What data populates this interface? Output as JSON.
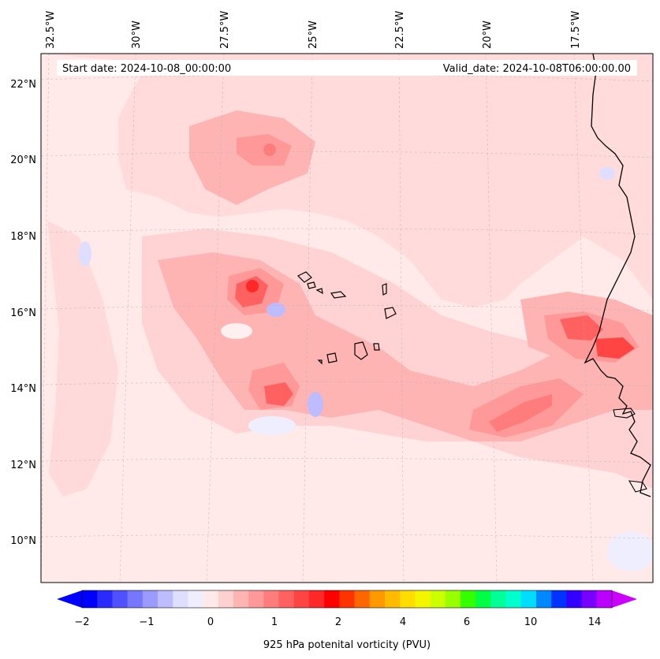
{
  "map": {
    "header": {
      "start_date": "Start date: 2024-10-08_00:00:00",
      "valid_date": "Valid_date: 2024-10-08T06:00:00.00"
    },
    "lon_labels": [
      "32.5°W",
      "30°W",
      "27.5°W",
      "25°W",
      "22.5°W",
      "20°W",
      "17.5°W"
    ],
    "lat_labels": [
      "22°N",
      "20°N",
      "18°N",
      "16°N",
      "14°N",
      "12°N",
      "10°N"
    ],
    "gridlines": true,
    "background_color": "#ffe9e9",
    "colorbar": {
      "label": "925 hPa potenital vorticity (PVU)",
      "tick_labels": [
        "−2",
        "−1",
        "0",
        "1",
        "2",
        "4",
        "6",
        "10",
        "14"
      ],
      "colors": [
        "#0000ff",
        "#2a2aff",
        "#5050ff",
        "#7676ff",
        "#9a9aff",
        "#bcbcff",
        "#dedeff",
        "#eeeeff",
        "#ffe9e9",
        "#ffd0d0",
        "#ffb4b4",
        "#ff9898",
        "#ff7c7c",
        "#ff6060",
        "#ff4444",
        "#ff2828",
        "#ff0000",
        "#ff3300",
        "#ff6600",
        "#ff9900",
        "#ffbb00",
        "#ffdd00",
        "#f5f500",
        "#ccff00",
        "#99ff00",
        "#33ff00",
        "#00ff44",
        "#00ff99",
        "#00ffcc",
        "#00ddff",
        "#0088ff",
        "#0033ff",
        "#3300ff",
        "#7700ff",
        "#bb00ff"
      ],
      "extend_low_color": "#0000ff",
      "extend_high_color": "#cc00ff"
    }
  }
}
